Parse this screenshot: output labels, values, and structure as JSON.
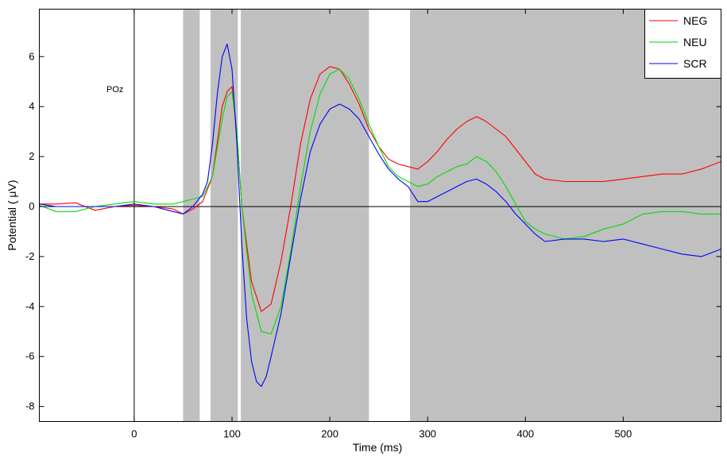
{
  "chart_data": {
    "type": "line",
    "xlabel": "Time (ms)",
    "ylabel": "Potential ( μV)",
    "annotation": "POz",
    "xlim": [
      -97,
      600
    ],
    "ylim": [
      -8.6,
      7.9
    ],
    "xticks": [
      0,
      100,
      200,
      300,
      400,
      500
    ],
    "yticks": [
      -8,
      -6,
      -4,
      -2,
      0,
      2,
      4,
      6
    ],
    "grid": false,
    "legend_position": "top-right",
    "reference_lines": {
      "vertical_x": 0,
      "horizontal_y": 0
    },
    "shaded_intervals": [
      [
        50,
        67
      ],
      [
        78,
        106
      ],
      [
        109,
        240
      ],
      [
        282,
        600
      ]
    ],
    "shade_color": "#c0c0c0",
    "series": [
      {
        "name": "NEG",
        "color": "#ff0000",
        "x": [
          -97,
          -80,
          -60,
          -40,
          -20,
          0,
          20,
          40,
          50,
          60,
          70,
          80,
          90,
          95,
          100,
          105,
          110,
          120,
          130,
          140,
          150,
          160,
          170,
          180,
          190,
          200,
          210,
          220,
          230,
          240,
          250,
          260,
          270,
          280,
          290,
          300,
          310,
          320,
          330,
          340,
          350,
          360,
          370,
          380,
          390,
          400,
          410,
          420,
          440,
          460,
          480,
          500,
          520,
          540,
          560,
          580,
          600
        ],
        "y": [
          0.1,
          0.1,
          0.15,
          -0.15,
          0.0,
          0.05,
          0.0,
          -0.1,
          -0.3,
          -0.1,
          0.2,
          1.2,
          4.0,
          4.6,
          4.8,
          3.0,
          0.0,
          -3.0,
          -4.2,
          -3.9,
          -2.2,
          0.0,
          2.5,
          4.3,
          5.3,
          5.6,
          5.5,
          4.9,
          4.1,
          3.1,
          2.4,
          1.9,
          1.7,
          1.6,
          1.5,
          1.8,
          2.2,
          2.7,
          3.1,
          3.4,
          3.6,
          3.4,
          3.1,
          2.8,
          2.3,
          1.8,
          1.3,
          1.1,
          1.0,
          1.0,
          1.0,
          1.1,
          1.2,
          1.3,
          1.3,
          1.5,
          1.8
        ]
      },
      {
        "name": "NEU",
        "color": "#00dd00",
        "x": [
          -97,
          -80,
          -60,
          -40,
          -20,
          0,
          20,
          40,
          50,
          60,
          70,
          80,
          90,
          95,
          100,
          105,
          110,
          120,
          130,
          140,
          150,
          160,
          170,
          180,
          190,
          200,
          210,
          220,
          230,
          240,
          250,
          260,
          270,
          280,
          290,
          300,
          310,
          320,
          330,
          340,
          350,
          360,
          370,
          380,
          390,
          400,
          410,
          420,
          440,
          460,
          480,
          500,
          520,
          540,
          560,
          580,
          600
        ],
        "y": [
          0.05,
          -0.2,
          -0.2,
          0.0,
          0.1,
          0.2,
          0.1,
          0.1,
          0.2,
          0.3,
          0.4,
          1.2,
          3.5,
          4.4,
          4.6,
          3.0,
          0.0,
          -3.5,
          -5.0,
          -5.1,
          -4.0,
          -1.8,
          0.8,
          3.0,
          4.5,
          5.3,
          5.5,
          5.1,
          4.3,
          3.3,
          2.4,
          1.6,
          1.2,
          1.0,
          0.8,
          0.9,
          1.2,
          1.4,
          1.6,
          1.7,
          2.0,
          1.8,
          1.4,
          0.8,
          0.1,
          -0.6,
          -0.9,
          -1.1,
          -1.3,
          -1.2,
          -0.9,
          -0.7,
          -0.3,
          -0.2,
          -0.2,
          -0.3,
          -0.3
        ]
      },
      {
        "name": "SCR",
        "color": "#0000ff",
        "x": [
          -97,
          -80,
          -60,
          -40,
          -20,
          0,
          20,
          40,
          50,
          60,
          70,
          75,
          80,
          85,
          90,
          95,
          100,
          105,
          110,
          115,
          120,
          125,
          130,
          135,
          140,
          150,
          160,
          170,
          180,
          190,
          200,
          210,
          220,
          230,
          240,
          250,
          260,
          270,
          280,
          290,
          300,
          310,
          320,
          330,
          340,
          350,
          360,
          370,
          380,
          390,
          400,
          410,
          420,
          440,
          460,
          480,
          500,
          520,
          540,
          560,
          580,
          600
        ],
        "y": [
          0.1,
          0.0,
          0.0,
          0.0,
          0.0,
          0.1,
          0.0,
          -0.2,
          -0.3,
          0.0,
          0.5,
          1.0,
          2.5,
          4.5,
          6.0,
          6.5,
          5.5,
          2.5,
          -1.5,
          -4.5,
          -6.2,
          -7.0,
          -7.2,
          -6.8,
          -6.0,
          -4.3,
          -2.0,
          0.3,
          2.2,
          3.3,
          3.9,
          4.1,
          3.9,
          3.5,
          2.8,
          2.1,
          1.5,
          1.1,
          0.8,
          0.2,
          0.2,
          0.4,
          0.6,
          0.8,
          1.0,
          1.1,
          0.9,
          0.6,
          0.2,
          -0.3,
          -0.7,
          -1.1,
          -1.4,
          -1.3,
          -1.3,
          -1.4,
          -1.3,
          -1.5,
          -1.7,
          -1.9,
          -2.0,
          -1.7
        ]
      }
    ]
  }
}
